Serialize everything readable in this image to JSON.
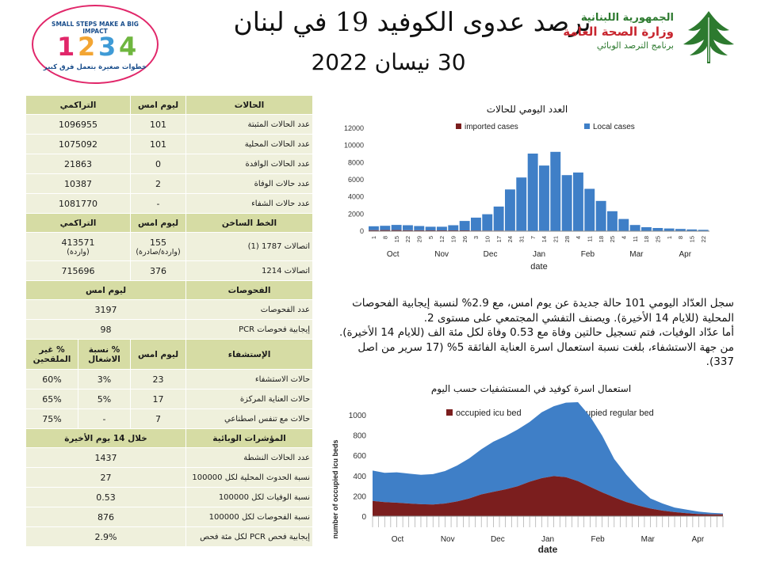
{
  "header": {
    "title": "ترصد عدوى الكوفيد 19 في لبنان",
    "date": "30 نيسان 2022",
    "ministry_line1": "الجمهورية اللبنانية",
    "ministry_line2": "وزارة الصحة العامة",
    "ministry_line3": "برنامج الترصد الوبائي",
    "campaign_top": "SMALL STEPS MAKE A BIG IMPACT",
    "campaign_bottom": "خطوات صغيرة بتعمل فرق كبير",
    "campaign_digits": [
      "1",
      "2",
      "3",
      "4"
    ]
  },
  "table": {
    "cases_section": {
      "headers": [
        "الحالات",
        "ليوم امس",
        "التراكمي"
      ],
      "rows": [
        {
          "label": "عدد الحالات المثبتة",
          "yesterday": "101",
          "cumulative": "1096955"
        },
        {
          "label": "عدد الحالات المحلية",
          "yesterday": "101",
          "cumulative": "1075092"
        },
        {
          "label": "عدد الحالات الوافدة",
          "yesterday": "0",
          "cumulative": "21863"
        },
        {
          "label": "عدد حالات الوفاة",
          "yesterday": "2",
          "cumulative": "10387"
        },
        {
          "label": "عدد حالات الشفاء",
          "yesterday": "-",
          "cumulative": "1081770"
        }
      ]
    },
    "hotline_section": {
      "headers": [
        "الخط الساخن",
        "ليوم امس",
        "التراكمي"
      ],
      "rows": [
        {
          "label": "اتصالات 1787 (1)",
          "yesterday": "155",
          "yesterday_note": "(واردة/صادرة)",
          "cumulative": "413571",
          "cumulative_note": "(واردة)"
        },
        {
          "label": "اتصالات 1214",
          "yesterday": "376",
          "cumulative": "715696"
        }
      ]
    },
    "tests_section": {
      "headers": [
        "الفحوصات",
        "ليوم امس"
      ],
      "rows": [
        {
          "label": "عدد الفحوصات",
          "value": "3197"
        },
        {
          "label": "إيجابية فحوصات PCR",
          "value": "98"
        }
      ]
    },
    "hospital_section": {
      "headers": [
        "الإستشفاء",
        "ليوم امس",
        "% نسبة الاشغال",
        "% غير الملقحين"
      ],
      "rows": [
        {
          "label": "حالات الاستشفاء",
          "yesterday": "23",
          "occupancy": "3%",
          "unvaccinated": "60%"
        },
        {
          "label": "حالات العناية المركزة",
          "yesterday": "17",
          "occupancy": "5%",
          "unvaccinated": "65%"
        },
        {
          "label": "حالات مع تنفس اصطناعي",
          "yesterday": "7",
          "occupancy": "-",
          "unvaccinated": "75%"
        }
      ]
    },
    "indicators_section": {
      "headers": [
        "المؤشرات الوبائية",
        "خلال 14 يوم الأخيرة"
      ],
      "rows": [
        {
          "label": "عدد الحالات النشطة",
          "value": "1437"
        },
        {
          "label": "نسبة الحدوث المحلية لكل 100000",
          "value": "27"
        },
        {
          "label": "نسبة الوفيات لكل 100000",
          "value": "0.53"
        },
        {
          "label": "نسبة الفحوصات لكل 100000",
          "value": "876"
        },
        {
          "label": "إيجابية فحص PCR لكل مئة فحص",
          "value": "2.9%"
        }
      ]
    }
  },
  "summary": {
    "line1": "سجل العدّاد اليومي 101 حالة جديدة عن يوم امس، مع 2.9% لنسبة إيجابية الفحوصات المحلية (للايام 14 الأخيرة). ويصنف التفشي المجتمعي على مستوى 2.",
    "line2": "أما عدّاد الوفيات، فتم تسجيل حالتين وفاة مع 0.53 وفاة لكل مئة الف (للايام 14 الأخيرة).",
    "line3": "من جهة الاستشفاء، بلغت نسبة استعمال اسرة العناية الفائقة 5% (17 سرير من اصل 337)."
  },
  "chart_data": [
    {
      "type": "bar",
      "title": "العدد اليومي للحالات",
      "xlabel": "date",
      "ylabel": "",
      "ylim": [
        0,
        12000
      ],
      "yticks": [
        0,
        2000,
        4000,
        6000,
        8000,
        10000,
        12000
      ],
      "legend_position": "top",
      "x_start": "2021-10-01",
      "x_end": "2022-04-29",
      "month_labels": [
        "Oct",
        "Nov",
        "Dec",
        "Jan",
        "Feb",
        "Mar",
        "Apr"
      ],
      "day_ticks": [
        "1",
        "8",
        "15",
        "22",
        "29",
        "5",
        "12",
        "19",
        "26",
        "3",
        "10",
        "17",
        "24",
        "31",
        "7",
        "14",
        "21",
        "28",
        "4",
        "11",
        "18",
        "25",
        "4",
        "11",
        "18",
        "25",
        "1",
        "8",
        "15",
        "22"
      ],
      "colors": {
        "imported": "#7b1e1e",
        "local": "#3f7fc7"
      },
      "series": [
        {
          "name": "imported cases",
          "values": [
            120,
            130,
            125,
            110,
            100,
            95,
            95,
            90,
            90,
            80,
            75,
            70,
            60,
            55,
            50,
            50,
            45,
            40,
            40,
            35,
            30,
            30,
            25,
            20,
            15,
            15,
            10,
            10,
            5,
            5
          ]
        },
        {
          "name": "Local cases",
          "values": [
            450,
            500,
            600,
            580,
            500,
            420,
            420,
            600,
            1100,
            1500,
            1900,
            2800,
            4800,
            6200,
            9000,
            7600,
            9200,
            6500,
            6800,
            4900,
            3500,
            2300,
            1400,
            700,
            450,
            350,
            300,
            250,
            200,
            150
          ]
        }
      ]
    },
    {
      "type": "area",
      "title": "استعمال اسرة كوفيد في المستشفيات حسب اليوم",
      "xlabel": "date",
      "ylabel": "number of occupied icu beds",
      "ylim": [
        0,
        1000
      ],
      "yticks": [
        0,
        200,
        400,
        600,
        800,
        1000
      ],
      "legend_position": "top",
      "x_start": "2021-10-01",
      "x_end": "2022-04-29",
      "month_labels": [
        "Oct",
        "Nov",
        "Dec",
        "Jan",
        "Feb",
        "Mar",
        "Apr"
      ],
      "colors": {
        "icu": "#7b1e1e",
        "regular": "#3f7fc7"
      },
      "series": [
        {
          "name": "occupied icu bed",
          "values": [
            150,
            138,
            133,
            125,
            118,
            115,
            125,
            145,
            175,
            215,
            240,
            265,
            295,
            340,
            375,
            395,
            385,
            345,
            290,
            235,
            185,
            140,
            105,
            75,
            55,
            40,
            30,
            20,
            18,
            17
          ]
        },
        {
          "name": "occupied regular bed",
          "values": [
            300,
            290,
            300,
            295,
            290,
            300,
            320,
            355,
            395,
            445,
            495,
            525,
            560,
            590,
            650,
            690,
            735,
            780,
            695,
            560,
            380,
            270,
            175,
            100,
            70,
            45,
            35,
            25,
            15,
            10
          ]
        }
      ]
    }
  ]
}
